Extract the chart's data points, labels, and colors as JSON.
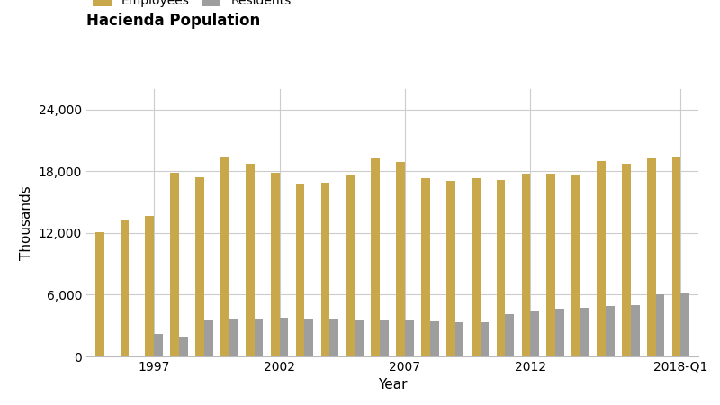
{
  "title": "Hacienda Population",
  "xlabel": "Year",
  "ylabel": "Thousands",
  "bar_width": 0.35,
  "employee_color": "#C9A84C",
  "resident_color": "#9E9E9E",
  "background_color": "#FFFFFF",
  "grid_color": "#CCCCCC",
  "ylim": [
    0,
    26000
  ],
  "yticks": [
    0,
    6000,
    12000,
    18000,
    24000
  ],
  "years": [
    1995,
    1996,
    1997,
    1998,
    1999,
    2000,
    2001,
    2002,
    2003,
    2004,
    2005,
    2006,
    2007,
    2008,
    2009,
    2010,
    2011,
    2012,
    2013,
    2014,
    2015,
    2016,
    2017,
    2018
  ],
  "employees": [
    12100,
    13200,
    13700,
    17900,
    17400,
    19400,
    18700,
    17900,
    16800,
    16900,
    17600,
    19300,
    18900,
    17300,
    17100,
    17300,
    17200,
    17800,
    17800,
    17600,
    19000,
    18700,
    19300,
    19400
  ],
  "residents": [
    0,
    0,
    2200,
    1900,
    3600,
    3700,
    3700,
    3800,
    3700,
    3700,
    3500,
    3600,
    3600,
    3400,
    3300,
    3300,
    4100,
    4500,
    4600,
    4700,
    4900,
    5000,
    6000,
    6100
  ],
  "title_fontsize": 12,
  "axis_label_fontsize": 11,
  "tick_fontsize": 10,
  "legend_fontsize": 10
}
